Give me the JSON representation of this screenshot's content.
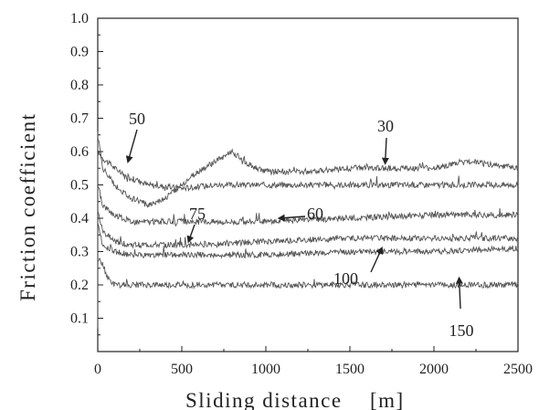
{
  "chart_data": {
    "type": "line",
    "xlabel": "Sliding distance",
    "xunit": "[m]",
    "ylabel": "Friction coefficient",
    "xlim": [
      0,
      2500
    ],
    "ylim": [
      0.0,
      1.0
    ],
    "x_ticks": [
      "0",
      "500",
      "1000",
      "1500",
      "2000",
      "2500"
    ],
    "y_ticks": [
      "0.1",
      "0.2",
      "0.3",
      "0.4",
      "0.5",
      "0.6",
      "0.7",
      "0.8",
      "0.9",
      "1.0"
    ],
    "series": [
      {
        "name": "50",
        "x": [
          0,
          30,
          80,
          150,
          300,
          500,
          700,
          1000,
          1500,
          2000,
          2500
        ],
        "y": [
          0.6,
          0.58,
          0.56,
          0.53,
          0.5,
          0.49,
          0.5,
          0.5,
          0.5,
          0.5,
          0.5
        ]
      },
      {
        "name": "30",
        "x": [
          0,
          30,
          100,
          200,
          300,
          400,
          500,
          600,
          700,
          800,
          900,
          1000,
          1200,
          1500,
          1800,
          2000,
          2200,
          2500
        ],
        "y": [
          0.65,
          0.55,
          0.5,
          0.46,
          0.44,
          0.46,
          0.5,
          0.54,
          0.57,
          0.6,
          0.56,
          0.54,
          0.54,
          0.55,
          0.55,
          0.55,
          0.57,
          0.55
        ]
      },
      {
        "name": "60",
        "x": [
          0,
          30,
          100,
          200,
          300,
          500,
          1000,
          1500,
          2000,
          2500
        ],
        "y": [
          0.5,
          0.44,
          0.41,
          0.39,
          0.39,
          0.39,
          0.39,
          0.4,
          0.41,
          0.41
        ]
      },
      {
        "name": "75",
        "x": [
          0,
          30,
          100,
          200,
          300,
          500,
          1000,
          1500,
          2000,
          2500
        ],
        "y": [
          0.42,
          0.36,
          0.33,
          0.32,
          0.32,
          0.32,
          0.33,
          0.34,
          0.34,
          0.34
        ]
      },
      {
        "name": "100",
        "x": [
          0,
          30,
          100,
          200,
          300,
          500,
          1000,
          1500,
          2000,
          2500
        ],
        "y": [
          0.38,
          0.32,
          0.3,
          0.29,
          0.29,
          0.29,
          0.29,
          0.3,
          0.3,
          0.31
        ]
      },
      {
        "name": "150",
        "x": [
          0,
          30,
          60,
          100,
          200,
          500,
          1000,
          1500,
          2000,
          2500
        ],
        "y": [
          0.28,
          0.26,
          0.22,
          0.2,
          0.2,
          0.2,
          0.2,
          0.2,
          0.2,
          0.2
        ]
      }
    ],
    "annotations": [
      {
        "text": "50",
        "arrow_to": [
          180,
          0.57
        ]
      },
      {
        "text": "30",
        "arrow_to": [
          1710,
          0.565
        ]
      },
      {
        "text": "75",
        "arrow_to": [
          540,
          0.33
        ]
      },
      {
        "text": "60",
        "arrow_to": [
          1080,
          0.4
        ]
      },
      {
        "text": "100",
        "arrow_to": [
          1690,
          0.31
        ]
      },
      {
        "text": "150",
        "arrow_to": [
          2150,
          0.22
        ]
      }
    ],
    "grid": false,
    "legend": "none",
    "colors": {
      "line": "#555555",
      "axis": "#222222",
      "background": "#ffffff"
    }
  }
}
